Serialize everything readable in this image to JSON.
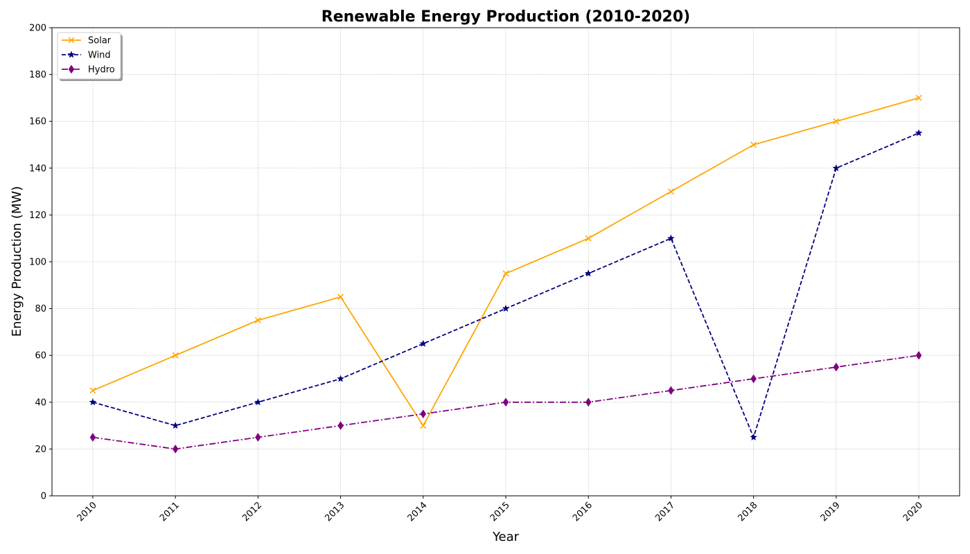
{
  "chart_data": {
    "type": "line",
    "title": "Renewable Energy Production (2010-2020)",
    "xlabel": "Year",
    "ylabel": "Energy Production (MW)",
    "x": [
      "2010",
      "2011",
      "2012",
      "2013",
      "2014",
      "2015",
      "2016",
      "2017",
      "2018",
      "2019",
      "2020"
    ],
    "ylim": [
      0,
      200
    ],
    "yticks": [
      0,
      20,
      40,
      60,
      80,
      100,
      120,
      140,
      160,
      180,
      200
    ],
    "grid": true,
    "legend_position": "top-left",
    "series": [
      {
        "name": "Solar",
        "color": "#FFA500",
        "linestyle": "solid",
        "marker": "x",
        "values": [
          45,
          60,
          75,
          85,
          30,
          95,
          110,
          130,
          150,
          160,
          170
        ]
      },
      {
        "name": "Wind",
        "color": "#000080",
        "linestyle": "dashed",
        "marker": "star",
        "values": [
          40,
          30,
          40,
          50,
          65,
          80,
          95,
          110,
          25,
          140,
          155
        ]
      },
      {
        "name": "Hydro",
        "color": "#800080",
        "linestyle": "dashdot",
        "marker": "diamond",
        "values": [
          25,
          20,
          25,
          30,
          35,
          40,
          40,
          45,
          50,
          55,
          60
        ]
      }
    ]
  }
}
